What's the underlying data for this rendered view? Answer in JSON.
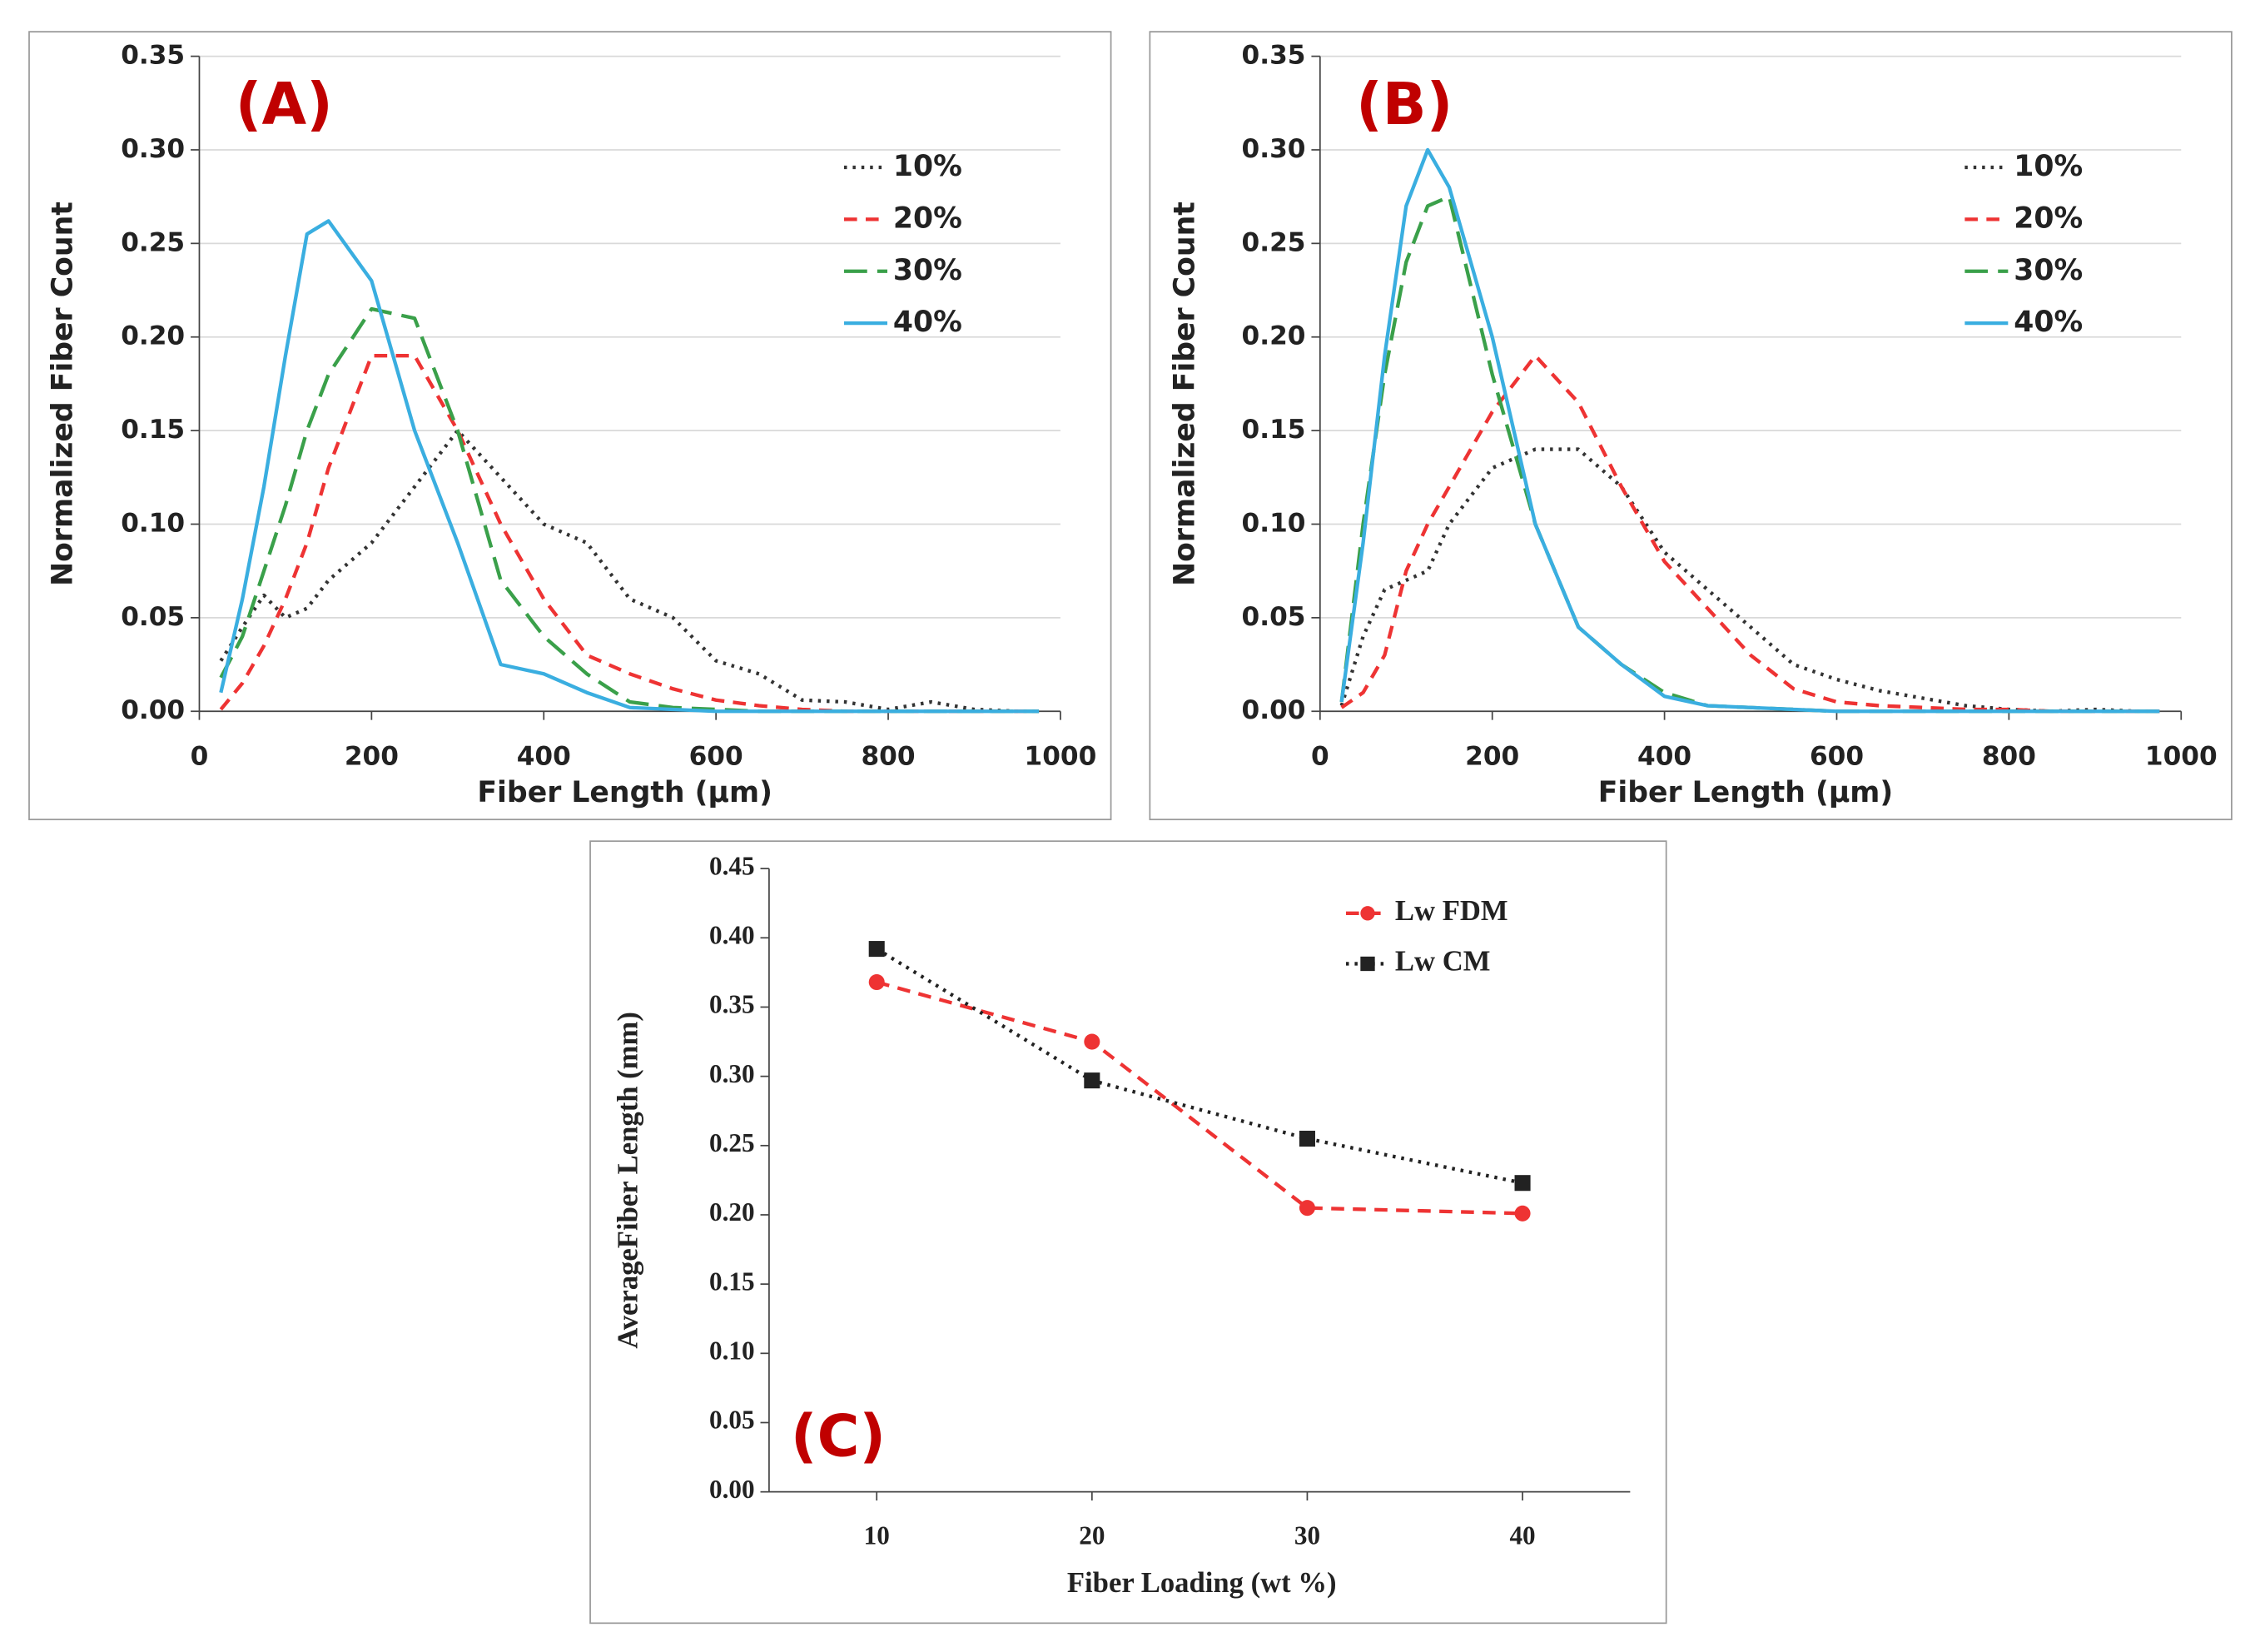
{
  "chart_data": [
    {
      "type": "line",
      "label": "(A)",
      "x_label": "Fiber Length (μm)",
      "y_label": "Normalized Fiber Count",
      "xlim": [
        0,
        1000
      ],
      "xticks": [
        0,
        200,
        400,
        600,
        800,
        1000
      ],
      "ylim": [
        0,
        0.35
      ],
      "yticks": [
        {
          "value": 0,
          "label": "0.00"
        },
        {
          "value": 0.05,
          "label": "0.05"
        },
        {
          "value": 0.1,
          "label": "0.10"
        },
        {
          "value": 0.15,
          "label": "0.15"
        },
        {
          "value": 0.2,
          "label": "0.20"
        },
        {
          "value": 0.25,
          "label": "0.25"
        },
        {
          "value": 0.3,
          "label": "0.30"
        },
        {
          "value": 0.35,
          "label": "0.35"
        }
      ],
      "grid": true,
      "legend": "upper right",
      "x": [
        25,
        50,
        75,
        100,
        125,
        150,
        200,
        250,
        300,
        350,
        400,
        450,
        500,
        550,
        600,
        650,
        700,
        750,
        800,
        850,
        900,
        950,
        975
      ],
      "series": [
        {
          "name": "10%",
          "color": "#333333",
          "dash": "dotted",
          "values": [
            0.027,
            0.045,
            0.062,
            0.05,
            0.055,
            0.07,
            0.09,
            0.12,
            0.15,
            0.125,
            0.1,
            0.09,
            0.06,
            0.05,
            0.027,
            0.02,
            0.006,
            0.005,
            0.001,
            0.005,
            0.001,
            0,
            0
          ]
        },
        {
          "name": "20%",
          "color": "#ee3333",
          "dash": "dashed",
          "values": [
            0.001,
            0.015,
            0.035,
            0.06,
            0.09,
            0.13,
            0.19,
            0.19,
            0.15,
            0.1,
            0.06,
            0.03,
            0.02,
            0.012,
            0.006,
            0.003,
            0.001,
            0,
            0,
            0,
            0,
            0,
            0
          ]
        },
        {
          "name": "30%",
          "color": "#3aa04a",
          "dash": "long-dashed",
          "values": [
            0.018,
            0.04,
            0.075,
            0.11,
            0.15,
            0.18,
            0.215,
            0.21,
            0.15,
            0.07,
            0.04,
            0.02,
            0.005,
            0.002,
            0.001,
            0,
            0,
            0,
            0,
            0,
            0,
            0,
            0
          ]
        },
        {
          "name": "40%",
          "color": "#3aaee0",
          "dash": "solid",
          "values": [
            0.01,
            0.06,
            0.12,
            0.19,
            0.255,
            0.262,
            0.23,
            0.15,
            0.09,
            0.025,
            0.02,
            0.01,
            0.002,
            0.001,
            0,
            0,
            0,
            0,
            0,
            0,
            0,
            0,
            0
          ]
        }
      ]
    },
    {
      "type": "line",
      "label": "(B)",
      "x_label": "Fiber Length (μm)",
      "y_label": "Normalized Fiber Count",
      "xlim": [
        0,
        1000
      ],
      "xticks": [
        0,
        200,
        400,
        600,
        800,
        1000
      ],
      "ylim": [
        0,
        0.35
      ],
      "yticks": [
        {
          "value": 0,
          "label": "0.00"
        },
        {
          "value": 0.05,
          "label": "0.05"
        },
        {
          "value": 0.1,
          "label": "0.10"
        },
        {
          "value": 0.15,
          "label": "0.15"
        },
        {
          "value": 0.2,
          "label": "0.20"
        },
        {
          "value": 0.25,
          "label": "0.25"
        },
        {
          "value": 0.3,
          "label": "0.30"
        },
        {
          "value": 0.35,
          "label": "0.35"
        }
      ],
      "grid": true,
      "legend": "upper right",
      "x": [
        25,
        50,
        75,
        100,
        125,
        150,
        200,
        250,
        300,
        350,
        400,
        450,
        500,
        550,
        600,
        650,
        700,
        750,
        800,
        850,
        900,
        950,
        975
      ],
      "series": [
        {
          "name": "10%",
          "color": "#333333",
          "dash": "dotted",
          "values": [
            0.003,
            0.04,
            0.065,
            0.07,
            0.075,
            0.1,
            0.13,
            0.14,
            0.14,
            0.12,
            0.085,
            0.065,
            0.045,
            0.025,
            0.017,
            0.011,
            0.007,
            0.003,
            0.001,
            0,
            0.001,
            0,
            0
          ]
        },
        {
          "name": "20%",
          "color": "#ee3333",
          "dash": "dashed",
          "values": [
            0.002,
            0.01,
            0.03,
            0.075,
            0.1,
            0.12,
            0.16,
            0.19,
            0.165,
            0.12,
            0.08,
            0.055,
            0.03,
            0.012,
            0.005,
            0.003,
            0.002,
            0.001,
            0.001,
            0,
            0,
            0,
            0
          ]
        },
        {
          "name": "30%",
          "color": "#3aa04a",
          "dash": "long-dashed",
          "values": [
            0.005,
            0.1,
            0.18,
            0.24,
            0.27,
            0.275,
            0.18,
            0.1,
            0.045,
            0.025,
            0.01,
            0.003,
            0.002,
            0.001,
            0,
            0,
            0,
            0,
            0,
            0,
            0,
            0,
            0
          ]
        },
        {
          "name": "40%",
          "color": "#3aaee0",
          "dash": "solid",
          "values": [
            0.005,
            0.09,
            0.19,
            0.27,
            0.3,
            0.28,
            0.2,
            0.1,
            0.045,
            0.025,
            0.008,
            0.003,
            0.002,
            0.001,
            0,
            0,
            0,
            0,
            0,
            0,
            0,
            0,
            0
          ]
        }
      ]
    },
    {
      "type": "line",
      "label": "(C)",
      "x_label": "Fiber Loading (wt %)",
      "y_label": "AverageFiber Length (mm)",
      "xlim": [
        5,
        45
      ],
      "xticks": [
        10,
        20,
        30,
        40
      ],
      "ylim": [
        0,
        0.45
      ],
      "yticks": [
        {
          "value": 0,
          "label": "0.00"
        },
        {
          "value": 0.05,
          "label": "0.05"
        },
        {
          "value": 0.1,
          "label": "0.10"
        },
        {
          "value": 0.15,
          "label": "0.15"
        },
        {
          "value": 0.2,
          "label": "0.20"
        },
        {
          "value": 0.25,
          "label": "0.25"
        },
        {
          "value": 0.3,
          "label": "0.30"
        },
        {
          "value": 0.35,
          "label": "0.35"
        },
        {
          "value": 0.4,
          "label": "0.40"
        },
        {
          "value": 0.45,
          "label": "0.45"
        }
      ],
      "grid": false,
      "legend": "upper right",
      "x": [
        10,
        20,
        30,
        40
      ],
      "series": [
        {
          "name": "Lw FDM",
          "color": "#ee3333",
          "dash": "dashed",
          "marker": "circle",
          "values": [
            0.368,
            0.325,
            0.205,
            0.201
          ]
        },
        {
          "name": "Lw CM",
          "color": "#222222",
          "dash": "dotted",
          "marker": "square",
          "values": [
            0.392,
            0.297,
            0.255,
            0.223
          ]
        }
      ]
    }
  ]
}
